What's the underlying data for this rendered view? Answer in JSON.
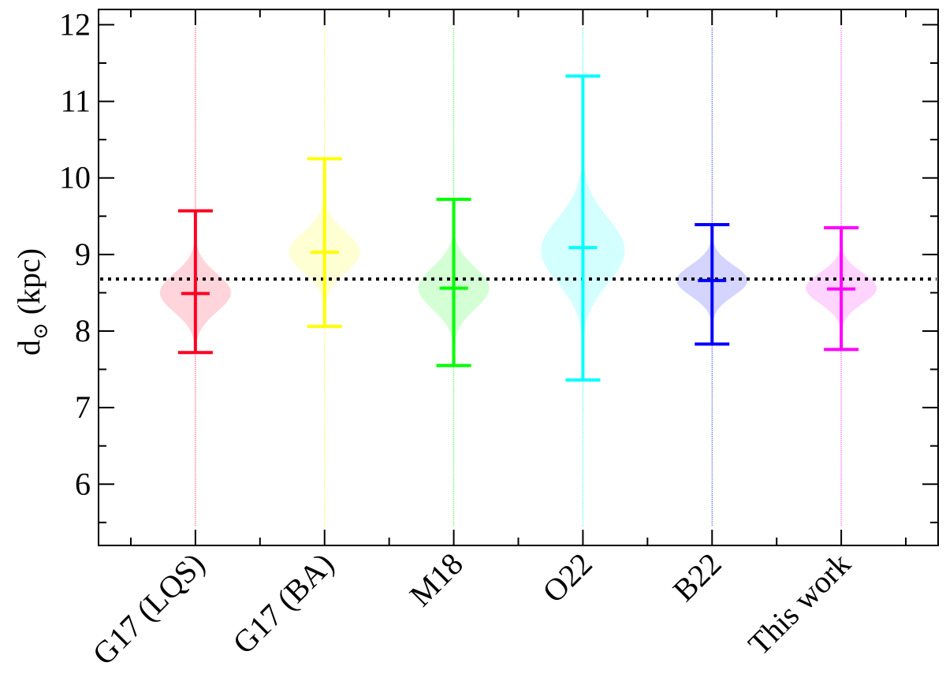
{
  "chart_data": {
    "type": "violin",
    "ylabel_main": "d",
    "ylabel_sub": "⊙",
    "ylabel_unit": " (kpc)",
    "ylim": [
      5.2,
      12.2
    ],
    "yticks": [
      "6",
      "7",
      "8",
      "9",
      "10",
      "11",
      "12"
    ],
    "reference_line": 8.68,
    "categories": [
      "G17 (LQS)",
      "G17 (BA)",
      "M18",
      "O22",
      "B22",
      "This work"
    ],
    "series": [
      {
        "category": "G17 (LQS)",
        "color": "#ff0022",
        "median": 8.49,
        "low": 7.72,
        "high": 9.57,
        "violin_peak": 8.5,
        "violin_spread": 0.25,
        "violin_width": 0.55
      },
      {
        "category": "G17 (BA)",
        "color": "#ffff00",
        "median": 9.03,
        "low": 8.06,
        "high": 10.25,
        "violin_peak": 9.03,
        "violin_spread": 0.26,
        "violin_width": 0.55
      },
      {
        "category": "M18",
        "color": "#00ff00",
        "median": 8.56,
        "low": 7.55,
        "high": 9.72,
        "violin_peak": 8.56,
        "violin_spread": 0.27,
        "violin_width": 0.55
      },
      {
        "category": "O22",
        "color": "#00ffff",
        "median": 9.09,
        "low": 7.36,
        "high": 11.33,
        "violin_peak": 9.05,
        "violin_spread": 0.42,
        "violin_width": 0.65
      },
      {
        "category": "B22",
        "color": "#0000ff",
        "median": 8.66,
        "low": 7.83,
        "high": 9.39,
        "violin_peak": 8.66,
        "violin_spread": 0.2,
        "violin_width": 0.55
      },
      {
        "category": "This work",
        "color": "#ff00ff",
        "median": 8.55,
        "low": 7.76,
        "high": 9.35,
        "violin_peak": 8.56,
        "violin_spread": 0.2,
        "violin_width": 0.55
      }
    ]
  }
}
